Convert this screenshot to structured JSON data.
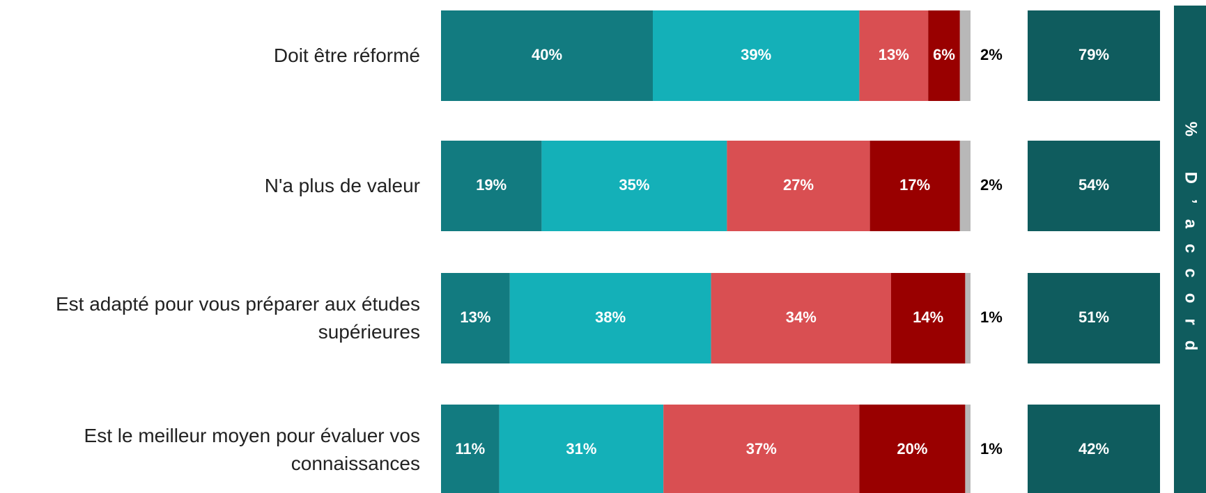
{
  "chart_data": {
    "type": "stacked-bar-horizontal",
    "categories": [
      "Doit être réformé",
      "N'a plus de valeur",
      "Est adapté pour vous préparer aux études supérieures",
      "Est le meilleur moyen pour évaluer vos connaissances"
    ],
    "xlim": [
      0,
      100
    ],
    "series": [
      {
        "color": "#127b80",
        "values": [
          40,
          19,
          13,
          11
        ],
        "value_labels": [
          "40%",
          "19%",
          "13%",
          "11%"
        ]
      },
      {
        "color": "#14b0b8",
        "values": [
          39,
          35,
          38,
          31
        ],
        "value_labels": [
          "39%",
          "35%",
          "38%",
          "31%"
        ]
      },
      {
        "color": "#d94f52",
        "values": [
          13,
          27,
          34,
          37
        ],
        "value_labels": [
          "13%",
          "27%",
          "34%",
          "37%"
        ]
      },
      {
        "color": "#990000",
        "values": [
          6,
          17,
          14,
          20
        ],
        "value_labels": [
          "6%",
          "17%",
          "14%",
          "20%"
        ]
      },
      {
        "color": "#b8b8b8",
        "values": [
          2,
          2,
          1,
          1
        ],
        "value_labels": [
          "2%",
          "2%",
          "1%",
          "1%"
        ]
      }
    ],
    "agree": {
      "title": "% D’accord",
      "color": "#0f5c5e",
      "values": [
        79,
        54,
        51,
        42
      ],
      "value_labels": [
        "79%",
        "54%",
        "51%",
        "42%"
      ]
    }
  }
}
